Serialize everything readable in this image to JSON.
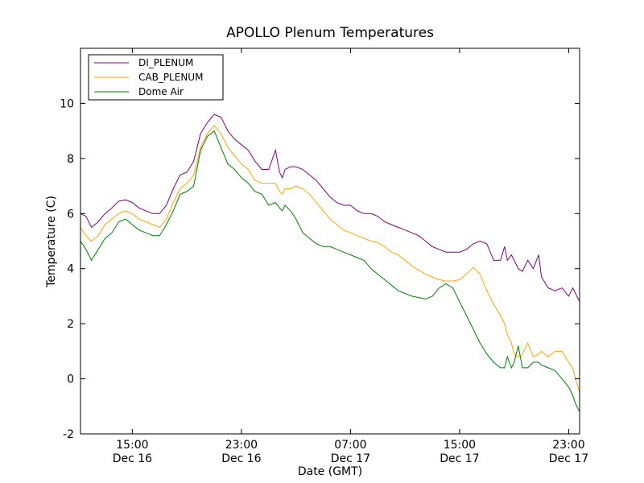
{
  "chart_data": {
    "type": "line",
    "title": "APOLLO Plenum Temperatures",
    "xlabel": "Date (GMT)",
    "ylabel": "Temperature (C)",
    "xlim": [
      11.2,
      47.8
    ],
    "ylim": [
      -2,
      12
    ],
    "x_unit": "hours since Dec 16 00:00 GMT",
    "yticks": [
      -2,
      0,
      2,
      4,
      6,
      8,
      10
    ],
    "xticks": [
      {
        "x": 15,
        "time": "15:00",
        "date": "Dec 16"
      },
      {
        "x": 23,
        "time": "23:00",
        "date": "Dec 16"
      },
      {
        "x": 31,
        "time": "07:00",
        "date": "Dec 17"
      },
      {
        "x": 39,
        "time": "15:00",
        "date": "Dec 17"
      },
      {
        "x": 47,
        "time": "23:00",
        "date": "Dec 17"
      }
    ],
    "legend_position": "top-left",
    "series": [
      {
        "name": "DI_PLENUM",
        "color": "#800080",
        "x": [
          11.2,
          11.6,
          12.0,
          12.5,
          13.0,
          13.5,
          14.0,
          14.5,
          15.0,
          15.5,
          16.0,
          16.5,
          17.0,
          17.5,
          18.0,
          18.5,
          19.0,
          19.5,
          20.0,
          20.5,
          21.0,
          21.5,
          22.0,
          22.5,
          23.0,
          23.5,
          24.0,
          24.5,
          25.0,
          25.5,
          25.8,
          26.0,
          26.2,
          26.6,
          27.0,
          27.5,
          28.0,
          28.5,
          29.0,
          29.5,
          30.0,
          30.5,
          31.0,
          31.5,
          32.0,
          32.5,
          33.0,
          33.5,
          34.0,
          34.5,
          35.0,
          35.5,
          36.0,
          36.5,
          37.0,
          37.5,
          38.0,
          38.5,
          39.0,
          39.5,
          40.0,
          40.5,
          41.0,
          41.5,
          42.0,
          42.3,
          42.5,
          42.8,
          43.0,
          43.3,
          43.6,
          44.0,
          44.4,
          44.8,
          45.0,
          45.5,
          46.0,
          46.5,
          47.0,
          47.3,
          47.5,
          47.8
        ],
        "values": [
          6.0,
          5.9,
          5.5,
          5.7,
          6.0,
          6.2,
          6.45,
          6.5,
          6.4,
          6.2,
          6.1,
          6.0,
          6.0,
          6.3,
          6.9,
          7.4,
          7.5,
          7.9,
          8.9,
          9.3,
          9.6,
          9.5,
          9.0,
          8.7,
          8.5,
          8.3,
          7.9,
          7.6,
          7.6,
          8.3,
          7.5,
          7.3,
          7.6,
          7.7,
          7.7,
          7.6,
          7.4,
          7.2,
          6.9,
          6.6,
          6.4,
          6.3,
          6.3,
          6.1,
          6.0,
          6.0,
          5.9,
          5.7,
          5.6,
          5.5,
          5.4,
          5.3,
          5.2,
          5.0,
          4.8,
          4.7,
          4.6,
          4.6,
          4.6,
          4.7,
          4.9,
          5.0,
          4.9,
          4.3,
          4.3,
          4.8,
          4.3,
          4.5,
          4.3,
          4.0,
          3.9,
          4.3,
          4.0,
          4.5,
          3.7,
          3.3,
          3.2,
          3.3,
          3.0,
          3.3,
          3.1,
          2.8
        ]
      },
      {
        "name": "CAB_PLENUM",
        "color": "#ffa500",
        "x": [
          11.2,
          11.6,
          12.0,
          12.5,
          13.0,
          13.5,
          14.0,
          14.5,
          15.0,
          15.5,
          16.0,
          16.5,
          17.0,
          17.5,
          18.0,
          18.5,
          19.0,
          19.5,
          20.0,
          20.5,
          21.0,
          21.5,
          22.0,
          22.5,
          23.0,
          23.5,
          24.0,
          24.5,
          25.0,
          25.5,
          25.8,
          26.0,
          26.2,
          26.6,
          27.0,
          27.5,
          28.0,
          28.5,
          29.0,
          29.5,
          30.0,
          30.5,
          31.0,
          31.5,
          32.0,
          32.5,
          33.0,
          33.5,
          34.0,
          34.5,
          35.0,
          35.5,
          36.0,
          36.5,
          37.0,
          37.5,
          38.0,
          38.5,
          39.0,
          39.5,
          40.0,
          40.5,
          41.0,
          41.5,
          42.0,
          42.3,
          42.5,
          42.8,
          43.0,
          43.3,
          43.6,
          44.0,
          44.4,
          44.8,
          45.0,
          45.5,
          46.0,
          46.5,
          47.0,
          47.3,
          47.5,
          47.8
        ],
        "values": [
          5.5,
          5.2,
          5.0,
          5.2,
          5.6,
          5.8,
          6.0,
          6.1,
          6.0,
          5.8,
          5.7,
          5.6,
          5.5,
          5.8,
          6.4,
          6.9,
          7.1,
          7.4,
          8.4,
          8.9,
          9.2,
          8.9,
          8.4,
          8.1,
          7.8,
          7.6,
          7.2,
          7.1,
          7.1,
          7.1,
          6.8,
          6.7,
          6.9,
          6.9,
          7.0,
          6.9,
          6.7,
          6.4,
          6.1,
          5.8,
          5.6,
          5.4,
          5.3,
          5.2,
          5.1,
          5.0,
          4.95,
          4.8,
          4.6,
          4.5,
          4.3,
          4.1,
          3.95,
          3.8,
          3.7,
          3.6,
          3.55,
          3.55,
          3.6,
          3.8,
          4.05,
          3.8,
          3.2,
          2.7,
          2.3,
          2.0,
          1.6,
          1.3,
          0.9,
          0.8,
          0.9,
          1.3,
          0.8,
          0.9,
          1.0,
          0.8,
          1.0,
          1.0,
          0.6,
          0.4,
          0.0,
          -0.5
        ]
      },
      {
        "name": "Dome Air",
        "color": "#008000",
        "x": [
          11.2,
          11.6,
          12.0,
          12.5,
          13.0,
          13.5,
          14.0,
          14.5,
          15.0,
          15.5,
          16.0,
          16.5,
          17.0,
          17.5,
          18.0,
          18.5,
          19.0,
          19.5,
          20.0,
          20.5,
          21.0,
          21.5,
          22.0,
          22.5,
          23.0,
          23.5,
          24.0,
          24.5,
          25.0,
          25.5,
          25.8,
          26.0,
          26.2,
          26.6,
          27.0,
          27.5,
          28.0,
          28.5,
          29.0,
          29.5,
          30.0,
          30.5,
          31.0,
          31.5,
          32.0,
          32.5,
          33.0,
          33.5,
          34.0,
          34.5,
          35.0,
          35.5,
          36.0,
          36.5,
          37.0,
          37.5,
          38.0,
          38.5,
          39.0,
          39.5,
          40.0,
          40.5,
          41.0,
          41.5,
          42.0,
          42.3,
          42.5,
          42.8,
          43.0,
          43.3,
          43.6,
          44.0,
          44.4,
          44.8,
          45.0,
          45.5,
          46.0,
          46.5,
          47.0,
          47.3,
          47.5,
          47.8
        ],
        "values": [
          5.0,
          4.7,
          4.3,
          4.7,
          5.1,
          5.3,
          5.7,
          5.8,
          5.6,
          5.4,
          5.3,
          5.2,
          5.2,
          5.6,
          6.1,
          6.7,
          6.8,
          7.0,
          8.3,
          8.8,
          9.0,
          8.4,
          7.8,
          7.6,
          7.3,
          7.1,
          6.8,
          6.7,
          6.3,
          6.4,
          6.2,
          6.1,
          6.3,
          6.1,
          5.8,
          5.3,
          5.1,
          4.9,
          4.8,
          4.8,
          4.7,
          4.6,
          4.5,
          4.4,
          4.3,
          4.0,
          3.8,
          3.6,
          3.4,
          3.2,
          3.1,
          3.0,
          2.95,
          2.9,
          3.0,
          3.3,
          3.45,
          3.3,
          2.8,
          2.3,
          1.8,
          1.3,
          0.9,
          0.6,
          0.4,
          0.4,
          0.8,
          0.4,
          0.6,
          1.2,
          0.4,
          0.4,
          0.6,
          0.6,
          0.5,
          0.4,
          0.3,
          0.0,
          -0.3,
          -0.6,
          -0.9,
          -1.2
        ]
      }
    ]
  }
}
